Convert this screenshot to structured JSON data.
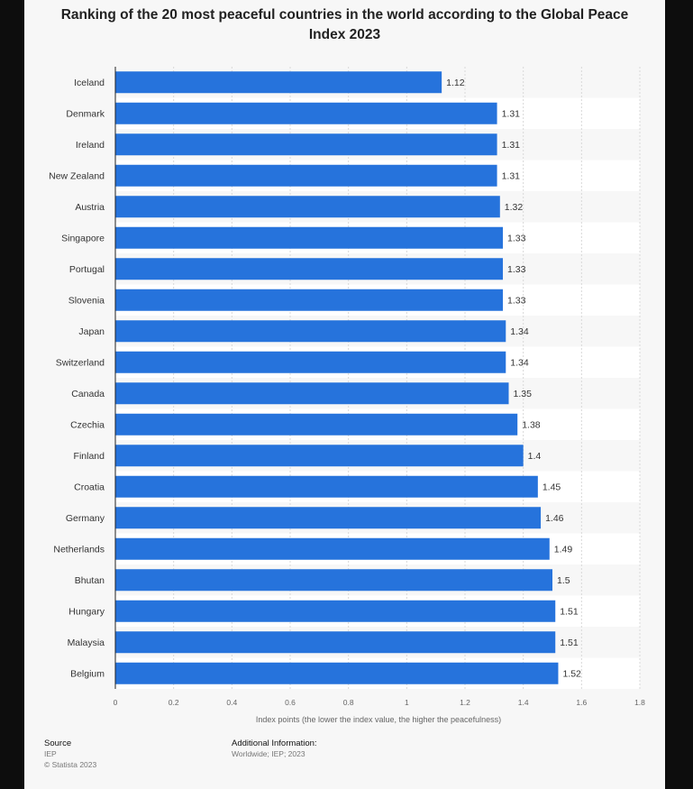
{
  "chart_data": {
    "type": "bar",
    "orientation": "horizontal",
    "title": "Ranking of the 20 most peaceful countries in the world according to the Global Peace Index 2023",
    "xlabel": "Index points (the lower the index value, the higher the peacefulness)",
    "ylabel": "",
    "categories": [
      "Iceland",
      "Denmark",
      "Ireland",
      "New Zealand",
      "Austria",
      "Singapore",
      "Portugal",
      "Slovenia",
      "Japan",
      "Switzerland",
      "Canada",
      "Czechia",
      "Finland",
      "Croatia",
      "Germany",
      "Netherlands",
      "Bhutan",
      "Hungary",
      "Malaysia",
      "Belgium"
    ],
    "values": [
      1.12,
      1.31,
      1.31,
      1.31,
      1.32,
      1.33,
      1.33,
      1.33,
      1.34,
      1.34,
      1.35,
      1.38,
      1.4,
      1.45,
      1.46,
      1.49,
      1.5,
      1.51,
      1.51,
      1.52
    ],
    "value_labels": [
      "1.12",
      "1.31",
      "1.31",
      "1.31",
      "1.32",
      "1.33",
      "1.33",
      "1.33",
      "1.34",
      "1.34",
      "1.35",
      "1.38",
      "1.4",
      "1.45",
      "1.46",
      "1.49",
      "1.5",
      "1.51",
      "1.51",
      "1.52"
    ],
    "xlim": [
      0,
      1.8
    ],
    "xticks": [
      0,
      0.2,
      0.4,
      0.6,
      0.8,
      1,
      1.2,
      1.4,
      1.6,
      1.8
    ],
    "xtick_labels": [
      "0",
      "0.2",
      "0.4",
      "0.6",
      "0.8",
      "1",
      "1.2",
      "1.4",
      "1.6",
      "1.8"
    ],
    "grid": true,
    "bar_color": "#2673dc",
    "stripe_color": "#ffffff"
  },
  "footer": {
    "source_label": "Source",
    "source_lines": [
      "IEP",
      "© Statista 2023"
    ],
    "info_label": "Additional Information:",
    "info_text": "Worldwide; IEP; 2023"
  }
}
